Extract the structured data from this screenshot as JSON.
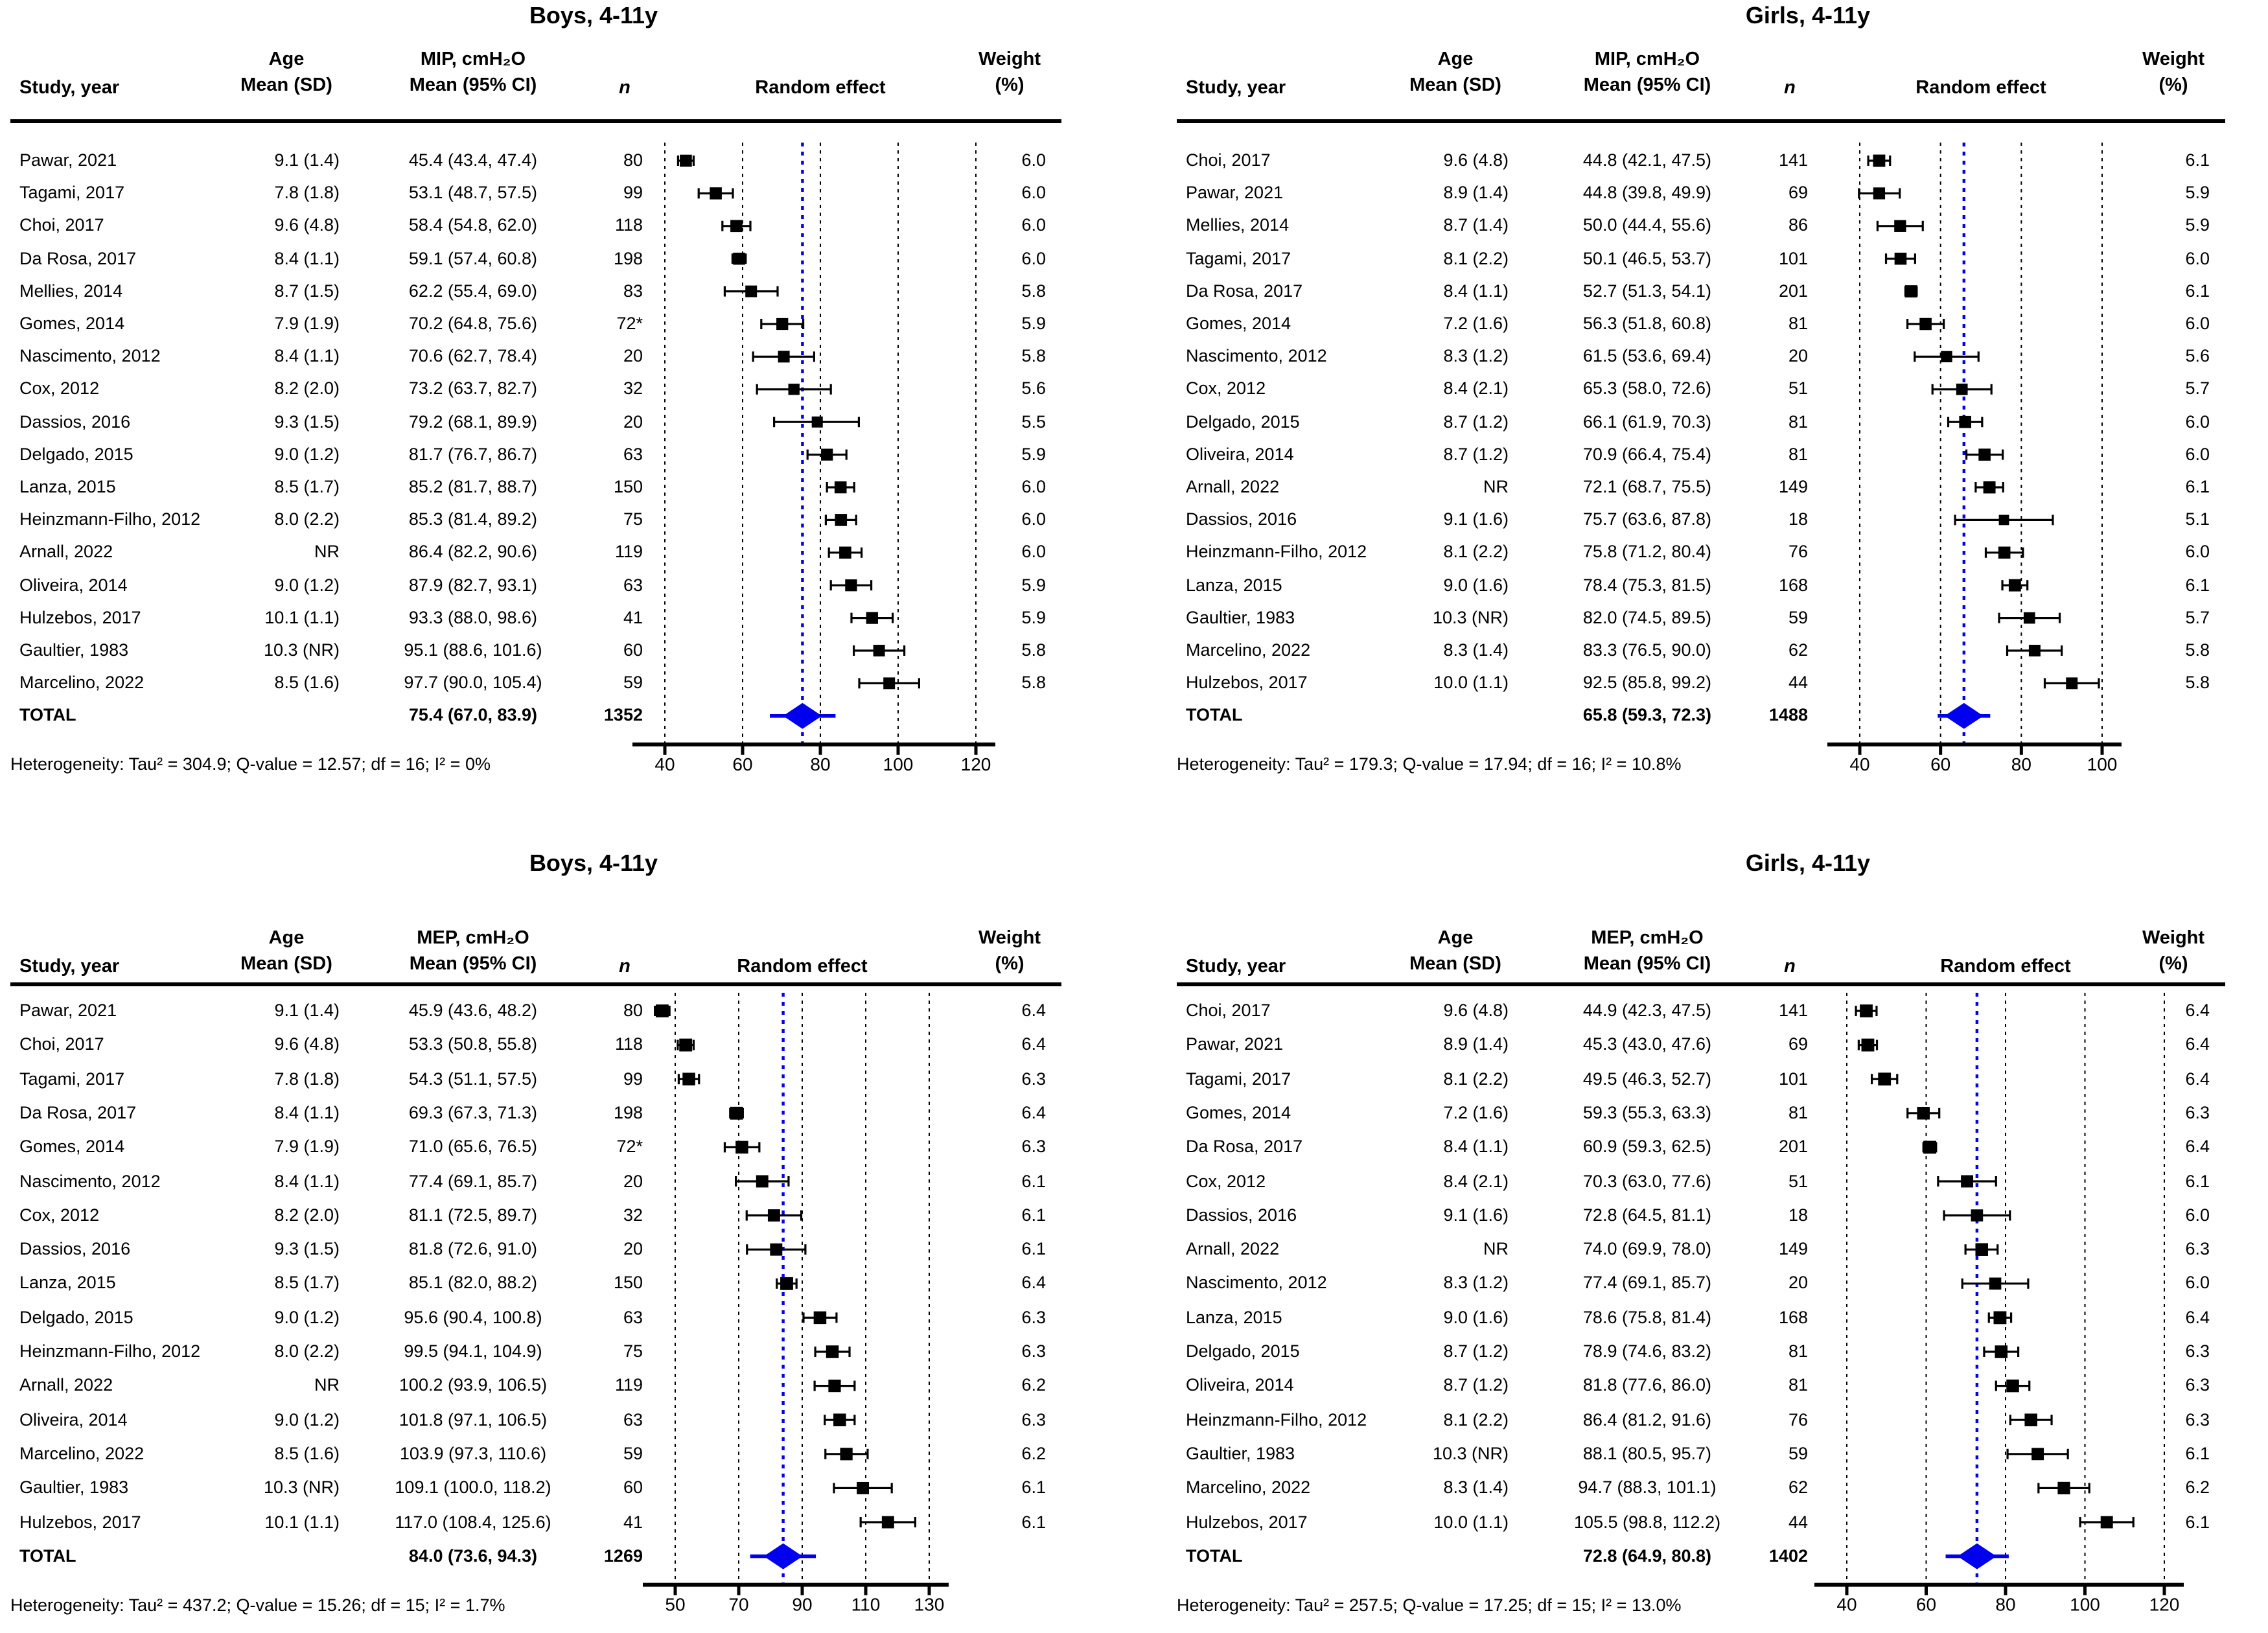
{
  "figure": {
    "description": "Forest plots of maximal inspiratory (MIP) and expiratory (MEP) pressures in boys and girls aged 4-11 years, random-effects meta-analysis"
  },
  "colors": {
    "accent_blue": "#0000EE",
    "marker_black": "#000000",
    "background": "#FFFFFF"
  },
  "chart_data": [
    {
      "type": "forest",
      "id": "boys-mip",
      "title": "Boys, 4-11y",
      "columns": {
        "study": "Study, year",
        "age1": "Age",
        "age2": "Mean (SD)",
        "ci1": "MIP, cmH₂O",
        "ci2": "Mean (95% CI)",
        "n": "n",
        "plot": "Random effect",
        "w1": "Weight",
        "w2": "(%)"
      },
      "axis": {
        "ticks": [
          40,
          60,
          80,
          100,
          120
        ]
      },
      "pooled": 75.4,
      "rows": [
        {
          "study": "Pawar, 2021",
          "age": "9.1 (1.4)",
          "ci": "45.4 (43.4, 47.4)",
          "mean": 45.4,
          "lo": 43.4,
          "hi": 47.4,
          "n": "80",
          "weight": "6.0"
        },
        {
          "study": "Tagami, 2017",
          "age": "7.8 (1.8)",
          "ci": "53.1 (48.7, 57.5)",
          "mean": 53.1,
          "lo": 48.7,
          "hi": 57.5,
          "n": "99",
          "weight": "6.0"
        },
        {
          "study": "Choi, 2017",
          "age": "9.6 (4.8)",
          "ci": "58.4 (54.8, 62.0)",
          "mean": 58.4,
          "lo": 54.8,
          "hi": 62.0,
          "n": "118",
          "weight": "6.0"
        },
        {
          "study": "Da Rosa, 2017",
          "age": "8.4 (1.1)",
          "ci": "59.1 (57.4, 60.8)",
          "mean": 59.1,
          "lo": 57.4,
          "hi": 60.8,
          "n": "198",
          "weight": "6.0"
        },
        {
          "study": "Mellies, 2014",
          "age": "8.7 (1.5)",
          "ci": "62.2 (55.4, 69.0)",
          "mean": 62.2,
          "lo": 55.4,
          "hi": 69.0,
          "n": "83",
          "weight": "5.8"
        },
        {
          "study": "Gomes, 2014",
          "age": "7.9 (1.9)",
          "ci": "70.2 (64.8, 75.6)",
          "mean": 70.2,
          "lo": 64.8,
          "hi": 75.6,
          "n": "72*",
          "weight": "5.9"
        },
        {
          "study": "Nascimento, 2012",
          "age": "8.4 (1.1)",
          "ci": "70.6 (62.7, 78.4)",
          "mean": 70.6,
          "lo": 62.7,
          "hi": 78.4,
          "n": "20",
          "weight": "5.8"
        },
        {
          "study": "Cox, 2012",
          "age": "8.2 (2.0)",
          "ci": "73.2 (63.7, 82.7)",
          "mean": 73.2,
          "lo": 63.7,
          "hi": 82.7,
          "n": "32",
          "weight": "5.6"
        },
        {
          "study": "Dassios, 2016",
          "age": "9.3 (1.5)",
          "ci": "79.2 (68.1, 89.9)",
          "mean": 79.2,
          "lo": 68.1,
          "hi": 89.9,
          "n": "20",
          "weight": "5.5"
        },
        {
          "study": "Delgado, 2015",
          "age": "9.0 (1.2)",
          "ci": "81.7 (76.7, 86.7)",
          "mean": 81.7,
          "lo": 76.7,
          "hi": 86.7,
          "n": "63",
          "weight": "5.9"
        },
        {
          "study": "Lanza, 2015",
          "age": "8.5 (1.7)",
          "ci": "85.2 (81.7, 88.7)",
          "mean": 85.2,
          "lo": 81.7,
          "hi": 88.7,
          "n": "150",
          "weight": "6.0"
        },
        {
          "study": "Heinzmann-Filho, 2012",
          "age": "8.0 (2.2)",
          "ci": "85.3 (81.4, 89.2)",
          "mean": 85.3,
          "lo": 81.4,
          "hi": 89.2,
          "n": "75",
          "weight": "6.0"
        },
        {
          "study": "Arnall, 2022",
          "age": "NR",
          "ci": "86.4 (82.2, 90.6)",
          "mean": 86.4,
          "lo": 82.2,
          "hi": 90.6,
          "n": "119",
          "weight": "6.0"
        },
        {
          "study": "Oliveira, 2014",
          "age": "9.0 (1.2)",
          "ci": "87.9 (82.7, 93.1)",
          "mean": 87.9,
          "lo": 82.7,
          "hi": 93.1,
          "n": "63",
          "weight": "5.9"
        },
        {
          "study": "Hulzebos, 2017",
          "age": "10.1 (1.1)",
          "ci": "93.3 (88.0, 98.6)",
          "mean": 93.3,
          "lo": 88.0,
          "hi": 98.6,
          "n": "41",
          "weight": "5.9"
        },
        {
          "study": "Gaultier, 1983",
          "age": "10.3 (NR)",
          "ci": "95.1 (88.6, 101.6)",
          "mean": 95.1,
          "lo": 88.6,
          "hi": 101.6,
          "n": "60",
          "weight": "5.8"
        },
        {
          "study": "Marcelino, 2022",
          "age": "8.5 (1.6)",
          "ci": "97.7 (90.0, 105.4)",
          "mean": 97.7,
          "lo": 90.0,
          "hi": 105.4,
          "n": "59",
          "weight": "5.8"
        }
      ],
      "total": {
        "label": "TOTAL",
        "ci": "75.4 (67.0, 83.9)",
        "mean": 75.4,
        "lo": 67.0,
        "hi": 83.9,
        "n": "1352"
      },
      "heterogeneity": "Heterogeneity: Tau² = 304.9; Q-value = 12.57; df = 16; I² = 0%"
    },
    {
      "type": "forest",
      "id": "girls-mip",
      "title": "Girls, 4-11y",
      "columns": {
        "study": "Study, year",
        "age1": "Age",
        "age2": "Mean (SD)",
        "ci1": "MIP, cmH₂O",
        "ci2": "Mean (95% CI)",
        "n": "n",
        "plot": "Random effect",
        "w1": "Weight",
        "w2": "(%)"
      },
      "axis": {
        "ticks": [
          40,
          60,
          80,
          100
        ]
      },
      "pooled": 65.8,
      "rows": [
        {
          "study": "Choi, 2017",
          "age": "9.6 (4.8)",
          "ci": "44.8 (42.1, 47.5)",
          "mean": 44.8,
          "lo": 42.1,
          "hi": 47.5,
          "n": "141",
          "weight": "6.1"
        },
        {
          "study": "Pawar, 2021",
          "age": "8.9 (1.4)",
          "ci": "44.8 (39.8, 49.9)",
          "mean": 44.8,
          "lo": 39.8,
          "hi": 49.9,
          "n": "69",
          "weight": "5.9"
        },
        {
          "study": "Mellies, 2014",
          "age": "8.7 (1.4)",
          "ci": "50.0 (44.4, 55.6)",
          "mean": 50.0,
          "lo": 44.4,
          "hi": 55.6,
          "n": "86",
          "weight": "5.9"
        },
        {
          "study": "Tagami, 2017",
          "age": "8.1 (2.2)",
          "ci": "50.1 (46.5, 53.7)",
          "mean": 50.1,
          "lo": 46.5,
          "hi": 53.7,
          "n": "101",
          "weight": "6.0"
        },
        {
          "study": "Da Rosa, 2017",
          "age": "8.4 (1.1)",
          "ci": "52.7 (51.3, 54.1)",
          "mean": 52.7,
          "lo": 51.3,
          "hi": 54.1,
          "n": "201",
          "weight": "6.1"
        },
        {
          "study": "Gomes, 2014",
          "age": "7.2 (1.6)",
          "ci": "56.3 (51.8, 60.8)",
          "mean": 56.3,
          "lo": 51.8,
          "hi": 60.8,
          "n": "81",
          "weight": "6.0"
        },
        {
          "study": "Nascimento, 2012",
          "age": "8.3 (1.2)",
          "ci": "61.5 (53.6, 69.4)",
          "mean": 61.5,
          "lo": 53.6,
          "hi": 69.4,
          "n": "20",
          "weight": "5.6"
        },
        {
          "study": "Cox, 2012",
          "age": "8.4 (2.1)",
          "ci": "65.3 (58.0, 72.6)",
          "mean": 65.3,
          "lo": 58.0,
          "hi": 72.6,
          "n": "51",
          "weight": "5.7"
        },
        {
          "study": "Delgado, 2015",
          "age": "8.7 (1.2)",
          "ci": "66.1 (61.9, 70.3)",
          "mean": 66.1,
          "lo": 61.9,
          "hi": 70.3,
          "n": "81",
          "weight": "6.0"
        },
        {
          "study": "Oliveira, 2014",
          "age": "8.7 (1.2)",
          "ci": "70.9 (66.4, 75.4)",
          "mean": 70.9,
          "lo": 66.4,
          "hi": 75.4,
          "n": "81",
          "weight": "6.0"
        },
        {
          "study": "Arnall, 2022",
          "age": "NR",
          "ci": "72.1 (68.7, 75.5)",
          "mean": 72.1,
          "lo": 68.7,
          "hi": 75.5,
          "n": "149",
          "weight": "6.1"
        },
        {
          "study": "Dassios, 2016",
          "age": "9.1 (1.6)",
          "ci": "75.7 (63.6, 87.8)",
          "mean": 75.7,
          "lo": 63.6,
          "hi": 87.8,
          "n": "18",
          "weight": "5.1"
        },
        {
          "study": "Heinzmann-Filho, 2012",
          "age": "8.1 (2.2)",
          "ci": "75.8 (71.2, 80.4)",
          "mean": 75.8,
          "lo": 71.2,
          "hi": 80.4,
          "n": "76",
          "weight": "6.0"
        },
        {
          "study": "Lanza, 2015",
          "age": "9.0 (1.6)",
          "ci": "78.4 (75.3, 81.5)",
          "mean": 78.4,
          "lo": 75.3,
          "hi": 81.5,
          "n": "168",
          "weight": "6.1"
        },
        {
          "study": "Gaultier, 1983",
          "age": "10.3 (NR)",
          "ci": "82.0 (74.5, 89.5)",
          "mean": 82.0,
          "lo": 74.5,
          "hi": 89.5,
          "n": "59",
          "weight": "5.7"
        },
        {
          "study": "Marcelino, 2022",
          "age": "8.3 (1.4)",
          "ci": "83.3 (76.5, 90.0)",
          "mean": 83.3,
          "lo": 76.5,
          "hi": 90.0,
          "n": "62",
          "weight": "5.8"
        },
        {
          "study": "Hulzebos, 2017",
          "age": "10.0 (1.1)",
          "ci": "92.5 (85.8, 99.2)",
          "mean": 92.5,
          "lo": 85.8,
          "hi": 99.2,
          "n": "44",
          "weight": "5.8"
        }
      ],
      "total": {
        "label": "TOTAL",
        "ci": "65.8 (59.3, 72.3)",
        "mean": 65.8,
        "lo": 59.3,
        "hi": 72.3,
        "n": "1488"
      },
      "heterogeneity": "Heterogeneity: Tau² = 179.3; Q-value = 17.94; df = 16; I² = 10.8%"
    },
    {
      "type": "forest",
      "id": "boys-mep",
      "title": "Boys, 4-11y",
      "columns": {
        "study": "Study, year",
        "age1": "Age",
        "age2": "Mean (SD)",
        "ci1": "MEP, cmH₂O",
        "ci2": "Mean (95% CI)",
        "n": "n",
        "plot": "Random effect",
        "w1": "Weight",
        "w2": "(%)"
      },
      "axis": {
        "ticks": [
          50,
          70,
          90,
          110,
          130
        ]
      },
      "pooled": 84.0,
      "rows": [
        {
          "study": "Pawar, 2021",
          "age": "9.1 (1.4)",
          "ci": "45.9 (43.6, 48.2)",
          "mean": 45.9,
          "lo": 43.6,
          "hi": 48.2,
          "n": "80",
          "weight": "6.4"
        },
        {
          "study": "Choi, 2017",
          "age": "9.6 (4.8)",
          "ci": "53.3 (50.8, 55.8)",
          "mean": 53.3,
          "lo": 50.8,
          "hi": 55.8,
          "n": "118",
          "weight": "6.4"
        },
        {
          "study": "Tagami, 2017",
          "age": "7.8 (1.8)",
          "ci": "54.3 (51.1, 57.5)",
          "mean": 54.3,
          "lo": 51.1,
          "hi": 57.5,
          "n": "99",
          "weight": "6.3"
        },
        {
          "study": "Da Rosa, 2017",
          "age": "8.4 (1.1)",
          "ci": "69.3 (67.3, 71.3)",
          "mean": 69.3,
          "lo": 67.3,
          "hi": 71.3,
          "n": "198",
          "weight": "6.4"
        },
        {
          "study": "Gomes, 2014",
          "age": "7.9 (1.9)",
          "ci": "71.0 (65.6, 76.5)",
          "mean": 71.0,
          "lo": 65.6,
          "hi": 76.5,
          "n": "72*",
          "weight": "6.3"
        },
        {
          "study": "Nascimento, 2012",
          "age": "8.4 (1.1)",
          "ci": "77.4 (69.1, 85.7)",
          "mean": 77.4,
          "lo": 69.1,
          "hi": 85.7,
          "n": "20",
          "weight": "6.1"
        },
        {
          "study": "Cox, 2012",
          "age": "8.2 (2.0)",
          "ci": "81.1 (72.5, 89.7)",
          "mean": 81.1,
          "lo": 72.5,
          "hi": 89.7,
          "n": "32",
          "weight": "6.1"
        },
        {
          "study": "Dassios, 2016",
          "age": "9.3 (1.5)",
          "ci": "81.8 (72.6, 91.0)",
          "mean": 81.8,
          "lo": 72.6,
          "hi": 91.0,
          "n": "20",
          "weight": "6.1"
        },
        {
          "study": "Lanza, 2015",
          "age": "8.5 (1.7)",
          "ci": "85.1 (82.0, 88.2)",
          "mean": 85.1,
          "lo": 82.0,
          "hi": 88.2,
          "n": "150",
          "weight": "6.4"
        },
        {
          "study": "Delgado, 2015",
          "age": "9.0 (1.2)",
          "ci": "95.6 (90.4, 100.8)",
          "mean": 95.6,
          "lo": 90.4,
          "hi": 100.8,
          "n": "63",
          "weight": "6.3"
        },
        {
          "study": "Heinzmann-Filho, 2012",
          "age": "8.0 (2.2)",
          "ci": "99.5 (94.1, 104.9)",
          "mean": 99.5,
          "lo": 94.1,
          "hi": 104.9,
          "n": "75",
          "weight": "6.3"
        },
        {
          "study": "Arnall, 2022",
          "age": "NR",
          "ci": "100.2 (93.9, 106.5)",
          "mean": 100.2,
          "lo": 93.9,
          "hi": 106.5,
          "n": "119",
          "weight": "6.2"
        },
        {
          "study": "Oliveira, 2014",
          "age": "9.0 (1.2)",
          "ci": "101.8 (97.1, 106.5)",
          "mean": 101.8,
          "lo": 97.1,
          "hi": 106.5,
          "n": "63",
          "weight": "6.3"
        },
        {
          "study": "Marcelino, 2022",
          "age": "8.5 (1.6)",
          "ci": "103.9 (97.3, 110.6)",
          "mean": 103.9,
          "lo": 97.3,
          "hi": 110.6,
          "n": "59",
          "weight": "6.2"
        },
        {
          "study": "Gaultier, 1983",
          "age": "10.3 (NR)",
          "ci": "109.1 (100.0, 118.2)",
          "mean": 109.1,
          "lo": 100.0,
          "hi": 118.2,
          "n": "60",
          "weight": "6.1"
        },
        {
          "study": "Hulzebos, 2017",
          "age": "10.1 (1.1)",
          "ci": "117.0 (108.4, 125.6)",
          "mean": 117.0,
          "lo": 108.4,
          "hi": 125.6,
          "n": "41",
          "weight": "6.1"
        }
      ],
      "total": {
        "label": "TOTAL",
        "ci": "84.0 (73.6, 94.3)",
        "mean": 84.0,
        "lo": 73.6,
        "hi": 94.3,
        "n": "1269"
      },
      "heterogeneity": "Heterogeneity: Tau² = 437.2; Q-value = 15.26; df = 15; I² = 1.7%"
    },
    {
      "type": "forest",
      "id": "girls-mep",
      "title": "Girls, 4-11y",
      "columns": {
        "study": "Study, year",
        "age1": "Age",
        "age2": "Mean (SD)",
        "ci1": "MEP, cmH₂O",
        "ci2": "Mean (95% CI)",
        "n": "n",
        "plot": "Random effect",
        "w1": "Weight",
        "w2": "(%)"
      },
      "axis": {
        "ticks": [
          40,
          60,
          80,
          100,
          120
        ]
      },
      "pooled": 72.8,
      "rows": [
        {
          "study": "Choi, 2017",
          "age": "9.6 (4.8)",
          "ci": "44.9 (42.3, 47.5)",
          "mean": 44.9,
          "lo": 42.3,
          "hi": 47.5,
          "n": "141",
          "weight": "6.4"
        },
        {
          "study": "Pawar, 2021",
          "age": "8.9 (1.4)",
          "ci": "45.3 (43.0, 47.6)",
          "mean": 45.3,
          "lo": 43.0,
          "hi": 47.6,
          "n": "69",
          "weight": "6.4"
        },
        {
          "study": "Tagami, 2017",
          "age": "8.1 (2.2)",
          "ci": "49.5 (46.3, 52.7)",
          "mean": 49.5,
          "lo": 46.3,
          "hi": 52.7,
          "n": "101",
          "weight": "6.4"
        },
        {
          "study": "Gomes, 2014",
          "age": "7.2 (1.6)",
          "ci": "59.3 (55.3, 63.3)",
          "mean": 59.3,
          "lo": 55.3,
          "hi": 63.3,
          "n": "81",
          "weight": "6.3"
        },
        {
          "study": "Da Rosa, 2017",
          "age": "8.4 (1.1)",
          "ci": "60.9 (59.3, 62.5)",
          "mean": 60.9,
          "lo": 59.3,
          "hi": 62.5,
          "n": "201",
          "weight": "6.4"
        },
        {
          "study": "Cox, 2012",
          "age": "8.4 (2.1)",
          "ci": "70.3 (63.0, 77.6)",
          "mean": 70.3,
          "lo": 63.0,
          "hi": 77.6,
          "n": "51",
          "weight": "6.1"
        },
        {
          "study": "Dassios, 2016",
          "age": "9.1 (1.6)",
          "ci": "72.8 (64.5, 81.1)",
          "mean": 72.8,
          "lo": 64.5,
          "hi": 81.1,
          "n": "18",
          "weight": "6.0"
        },
        {
          "study": "Arnall, 2022",
          "age": "NR",
          "ci": "74.0 (69.9, 78.0)",
          "mean": 74.0,
          "lo": 69.9,
          "hi": 78.0,
          "n": "149",
          "weight": "6.3"
        },
        {
          "study": "Nascimento, 2012",
          "age": "8.3 (1.2)",
          "ci": "77.4 (69.1, 85.7)",
          "mean": 77.4,
          "lo": 69.1,
          "hi": 85.7,
          "n": "20",
          "weight": "6.0"
        },
        {
          "study": "Lanza, 2015",
          "age": "9.0 (1.6)",
          "ci": "78.6 (75.8, 81.4)",
          "mean": 78.6,
          "lo": 75.8,
          "hi": 81.4,
          "n": "168",
          "weight": "6.4"
        },
        {
          "study": "Delgado, 2015",
          "age": "8.7 (1.2)",
          "ci": "78.9 (74.6, 83.2)",
          "mean": 78.9,
          "lo": 74.6,
          "hi": 83.2,
          "n": "81",
          "weight": "6.3"
        },
        {
          "study": "Oliveira, 2014",
          "age": "8.7 (1.2)",
          "ci": "81.8 (77.6, 86.0)",
          "mean": 81.8,
          "lo": 77.6,
          "hi": 86.0,
          "n": "81",
          "weight": "6.3"
        },
        {
          "study": "Heinzmann-Filho, 2012",
          "age": "8.1 (2.2)",
          "ci": "86.4 (81.2, 91.6)",
          "mean": 86.4,
          "lo": 81.2,
          "hi": 91.6,
          "n": "76",
          "weight": "6.3"
        },
        {
          "study": "Gaultier, 1983",
          "age": "10.3 (NR)",
          "ci": "88.1 (80.5, 95.7)",
          "mean": 88.1,
          "lo": 80.5,
          "hi": 95.7,
          "n": "59",
          "weight": "6.1"
        },
        {
          "study": "Marcelino, 2022",
          "age": "8.3 (1.4)",
          "ci": "94.7 (88.3, 101.1)",
          "mean": 94.7,
          "lo": 88.3,
          "hi": 101.1,
          "n": "62",
          "weight": "6.2"
        },
        {
          "study": "Hulzebos, 2017",
          "age": "10.0 (1.1)",
          "ci": "105.5 (98.8, 112.2)",
          "mean": 105.5,
          "lo": 98.8,
          "hi": 112.2,
          "n": "44",
          "weight": "6.1"
        }
      ],
      "total": {
        "label": "TOTAL",
        "ci": "72.8 (64.9, 80.8)",
        "mean": 72.8,
        "lo": 64.9,
        "hi": 80.8,
        "n": "1402"
      },
      "heterogeneity": "Heterogeneity: Tau² = 257.5; Q-value = 17.25; df = 15; I² = 13.0%"
    }
  ]
}
